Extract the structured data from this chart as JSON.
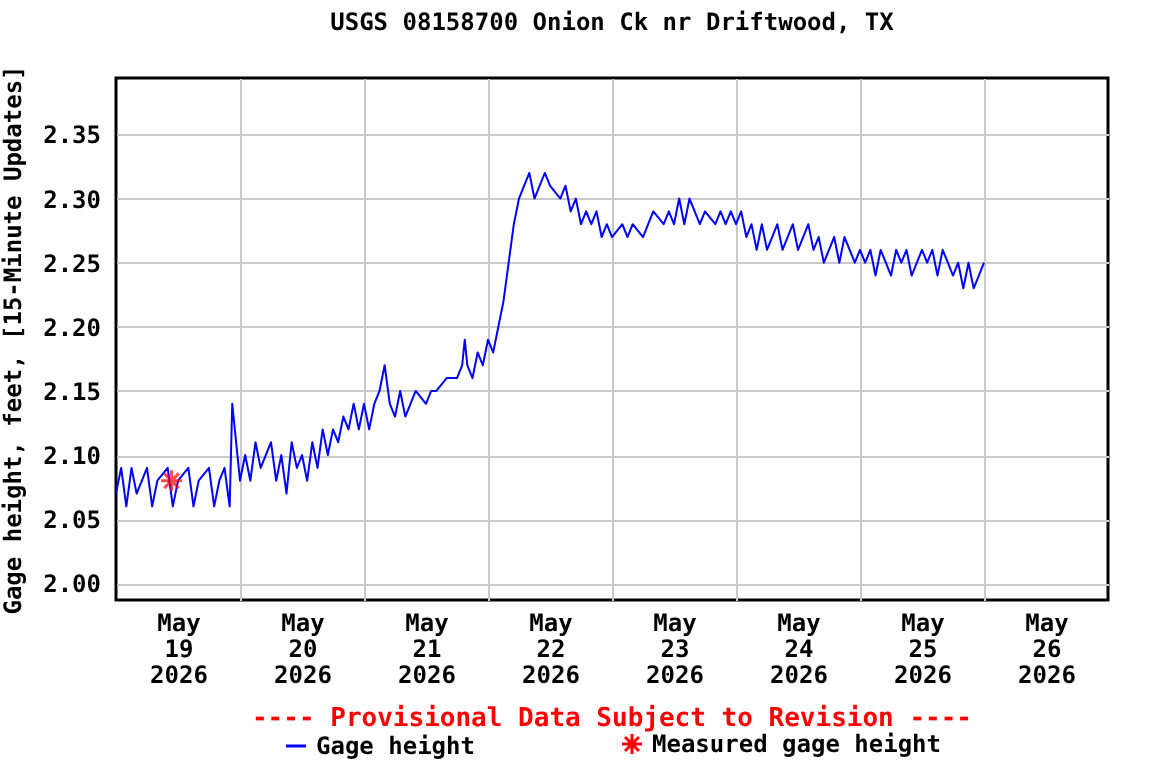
{
  "chart_data": {
    "type": "line",
    "title": "USGS 08158700 Onion Ck nr Driftwood, TX",
    "ylabel": "Gage height, feet, [15-Minute Updates]",
    "annotations": [
      "---- Provisional Data Subject to Revision ----"
    ],
    "xlim": [
      "2026-05-19T00:00",
      "2026-05-27T00:00"
    ],
    "xticks": [
      {
        "value": "2026-05-19T12:00",
        "label": "May 19 2026"
      },
      {
        "value": "2026-05-20T12:00",
        "label": "May 20 2026"
      },
      {
        "value": "2026-05-21T12:00",
        "label": "May 21 2026"
      },
      {
        "value": "2026-05-22T12:00",
        "label": "May 22 2026"
      },
      {
        "value": "2026-05-23T12:00",
        "label": "May 23 2026"
      },
      {
        "value": "2026-05-24T12:00",
        "label": "May 24 2026"
      },
      {
        "value": "2026-05-25T12:00",
        "label": "May 25 2026"
      },
      {
        "value": "2026-05-26T12:00",
        "label": "May 26 2026"
      },
      {
        "value": "2026-05-20T00:00",
        "label": null
      },
      {
        "value": "2026-05-21T00:00",
        "label": null
      },
      {
        "value": "2026-05-22T00:00",
        "label": null
      },
      {
        "value": "2026-05-23T00:00",
        "label": null
      },
      {
        "value": "2026-05-24T00:00",
        "label": null
      },
      {
        "value": "2026-05-25T00:00",
        "label": null
      },
      {
        "value": "2026-05-26T00:00",
        "label": null
      }
    ],
    "ylim": [
      1.987,
      2.394
    ],
    "yticks": [
      {
        "value": 2,
        "label": "2.00"
      },
      {
        "value": 2.05,
        "label": "2.05"
      },
      {
        "value": 2.1,
        "label": "2.10"
      },
      {
        "value": 2.15,
        "label": "2.15"
      },
      {
        "value": 2.2,
        "label": "2.20"
      },
      {
        "value": 2.25,
        "label": "2.25"
      },
      {
        "value": 2.3,
        "label": "2.30"
      },
      {
        "value": 2.35,
        "label": "2.35"
      }
    ],
    "grid": true,
    "legend": "bottom",
    "line_style": "solid",
    "series": [
      {
        "name": "Gage height",
        "color": "#0000ff",
        "marker": "none",
        "x": [
          "2026-05-19T00:00",
          "2026-05-19T01:00",
          "2026-05-19T02:00",
          "2026-05-19T03:00",
          "2026-05-19T04:00",
          "2026-05-19T06:00",
          "2026-05-19T07:00",
          "2026-05-19T08:00",
          "2026-05-19T10:00",
          "2026-05-19T11:00",
          "2026-05-19T12:00",
          "2026-05-19T14:00",
          "2026-05-19T15:00",
          "2026-05-19T16:00",
          "2026-05-19T18:00",
          "2026-05-19T19:00",
          "2026-05-19T20:00",
          "2026-05-19T21:00",
          "2026-05-19T22:00",
          "2026-05-19T22:30",
          "2026-05-19T23:00",
          "2026-05-19T23:30",
          "2026-05-20T00:00",
          "2026-05-20T01:00",
          "2026-05-20T02:00",
          "2026-05-20T03:00",
          "2026-05-20T04:00",
          "2026-05-20T06:00",
          "2026-05-20T07:00",
          "2026-05-20T08:00",
          "2026-05-20T09:00",
          "2026-05-20T10:00",
          "2026-05-20T11:00",
          "2026-05-20T12:00",
          "2026-05-20T13:00",
          "2026-05-20T14:00",
          "2026-05-20T15:00",
          "2026-05-20T16:00",
          "2026-05-20T17:00",
          "2026-05-20T18:00",
          "2026-05-20T19:00",
          "2026-05-20T20:00",
          "2026-05-20T21:00",
          "2026-05-20T22:00",
          "2026-05-20T23:00",
          "2026-05-21T00:00",
          "2026-05-21T01:00",
          "2026-05-21T02:00",
          "2026-05-21T03:00",
          "2026-05-21T04:00",
          "2026-05-21T05:00",
          "2026-05-21T06:00",
          "2026-05-21T07:00",
          "2026-05-21T08:00",
          "2026-05-21T09:00",
          "2026-05-21T10:00",
          "2026-05-21T12:00",
          "2026-05-21T13:00",
          "2026-05-21T14:00",
          "2026-05-21T16:00",
          "2026-05-21T18:00",
          "2026-05-21T19:00",
          "2026-05-21T19:30",
          "2026-05-21T20:00",
          "2026-05-21T21:00",
          "2026-05-21T22:00",
          "2026-05-21T23:00",
          "2026-05-22T00:00",
          "2026-05-22T01:00",
          "2026-05-22T02:00",
          "2026-05-22T03:00",
          "2026-05-22T04:00",
          "2026-05-22T05:00",
          "2026-05-22T06:00",
          "2026-05-22T07:00",
          "2026-05-22T08:00",
          "2026-05-22T09:00",
          "2026-05-22T10:00",
          "2026-05-22T11:00",
          "2026-05-22T12:00",
          "2026-05-22T14:00",
          "2026-05-22T15:00",
          "2026-05-22T16:00",
          "2026-05-22T17:00",
          "2026-05-22T18:00",
          "2026-05-22T19:00",
          "2026-05-22T20:00",
          "2026-05-22T21:00",
          "2026-05-22T22:00",
          "2026-05-22T23:00",
          "2026-05-23T00:00",
          "2026-05-23T02:00",
          "2026-05-23T03:00",
          "2026-05-23T04:00",
          "2026-05-23T06:00",
          "2026-05-23T07:00",
          "2026-05-23T08:00",
          "2026-05-23T10:00",
          "2026-05-23T11:00",
          "2026-05-23T12:00",
          "2026-05-23T13:00",
          "2026-05-23T14:00",
          "2026-05-23T15:00",
          "2026-05-23T16:00",
          "2026-05-23T17:00",
          "2026-05-23T18:00",
          "2026-05-23T20:00",
          "2026-05-23T21:00",
          "2026-05-23T22:00",
          "2026-05-23T23:00",
          "2026-05-24T00:00",
          "2026-05-24T01:00",
          "2026-05-24T02:00",
          "2026-05-24T03:00",
          "2026-05-24T04:00",
          "2026-05-24T05:00",
          "2026-05-24T06:00",
          "2026-05-24T07:00",
          "2026-05-24T08:00",
          "2026-05-24T09:00",
          "2026-05-24T10:00",
          "2026-05-24T11:00",
          "2026-05-24T12:00",
          "2026-05-24T13:00",
          "2026-05-24T14:00",
          "2026-05-24T15:00",
          "2026-05-24T16:00",
          "2026-05-24T17:00",
          "2026-05-24T18:00",
          "2026-05-24T19:00",
          "2026-05-24T20:00",
          "2026-05-24T21:00",
          "2026-05-24T22:00",
          "2026-05-24T23:00",
          "2026-05-25T00:00",
          "2026-05-25T01:00",
          "2026-05-25T02:00",
          "2026-05-25T03:00",
          "2026-05-25T04:00",
          "2026-05-25T05:00",
          "2026-05-25T06:00",
          "2026-05-25T07:00",
          "2026-05-25T08:00",
          "2026-05-25T09:00",
          "2026-05-25T10:00",
          "2026-05-25T11:00",
          "2026-05-25T12:00",
          "2026-05-25T13:00",
          "2026-05-25T14:00",
          "2026-05-25T15:00",
          "2026-05-25T16:00",
          "2026-05-25T17:00",
          "2026-05-25T18:00",
          "2026-05-25T19:00",
          "2026-05-25T20:00",
          "2026-05-25T21:00",
          "2026-05-25T22:00",
          "2026-05-25T23:00",
          "2026-05-26T00:00"
        ],
        "values": [
          2.07,
          2.09,
          2.06,
          2.09,
          2.07,
          2.09,
          2.06,
          2.08,
          2.09,
          2.06,
          2.08,
          2.09,
          2.06,
          2.08,
          2.09,
          2.06,
          2.08,
          2.09,
          2.06,
          2.14,
          2.12,
          2.1,
          2.08,
          2.1,
          2.08,
          2.11,
          2.09,
          2.11,
          2.08,
          2.1,
          2.07,
          2.11,
          2.09,
          2.1,
          2.08,
          2.11,
          2.09,
          2.12,
          2.1,
          2.12,
          2.11,
          2.13,
          2.12,
          2.14,
          2.12,
          2.14,
          2.12,
          2.14,
          2.15,
          2.17,
          2.14,
          2.13,
          2.15,
          2.13,
          2.14,
          2.15,
          2.14,
          2.15,
          2.15,
          2.16,
          2.16,
          2.17,
          2.19,
          2.17,
          2.16,
          2.18,
          2.17,
          2.19,
          2.18,
          2.2,
          2.22,
          2.25,
          2.28,
          2.3,
          2.31,
          2.32,
          2.3,
          2.31,
          2.32,
          2.31,
          2.3,
          2.31,
          2.29,
          2.3,
          2.28,
          2.29,
          2.28,
          2.29,
          2.27,
          2.28,
          2.27,
          2.28,
          2.27,
          2.28,
          2.27,
          2.28,
          2.29,
          2.28,
          2.29,
          2.28,
          2.3,
          2.28,
          2.3,
          2.29,
          2.28,
          2.29,
          2.28,
          2.29,
          2.28,
          2.29,
          2.28,
          2.29,
          2.27,
          2.28,
          2.26,
          2.28,
          2.26,
          2.27,
          2.28,
          2.26,
          2.27,
          2.28,
          2.26,
          2.27,
          2.28,
          2.26,
          2.27,
          2.25,
          2.26,
          2.27,
          2.25,
          2.27,
          2.26,
          2.25,
          2.26,
          2.25,
          2.26,
          2.24,
          2.26,
          2.25,
          2.24,
          2.26,
          2.25,
          2.26,
          2.24,
          2.25,
          2.26,
          2.25,
          2.26,
          2.24,
          2.26,
          2.25,
          2.24,
          2.25,
          2.23,
          2.25,
          2.23,
          2.24,
          2.25
        ]
      },
      {
        "name": "Measured gage height",
        "color": "#ff0000",
        "type": "scatter",
        "marker": "cross",
        "x": [
          "2026-05-19T10:45"
        ],
        "values": [
          2.08
        ]
      }
    ]
  }
}
